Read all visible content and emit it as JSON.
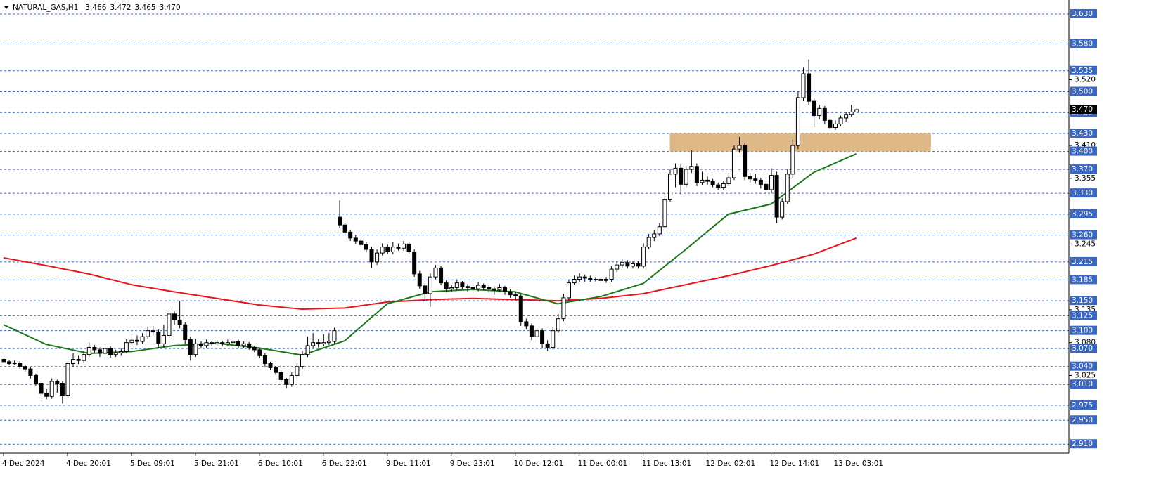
{
  "chart_data": {
    "type": "candlestick",
    "title": "NATURAL_GAS,H1",
    "title_values": [
      "3.466",
      "3.472",
      "3.465",
      "3.470"
    ],
    "ylim": [
      2.895,
      3.6535
    ],
    "up_color": "#ffffff",
    "down_color": "#000000",
    "categories": [
      "4 Dec 2024",
      null,
      null,
      null,
      null,
      null,
      null,
      null,
      null,
      null,
      null,
      null,
      "4 Dec 20:01",
      null,
      null,
      null,
      null,
      null,
      null,
      null,
      null,
      null,
      null,
      null,
      "5 Dec 09:01",
      null,
      null,
      null,
      null,
      null,
      null,
      null,
      null,
      null,
      null,
      null,
      "5 Dec 21:01",
      null,
      null,
      null,
      null,
      null,
      null,
      null,
      null,
      null,
      null,
      null,
      "6 Dec 10:01",
      null,
      null,
      null,
      null,
      null,
      null,
      null,
      null,
      null,
      null,
      null,
      "6 Dec 22:01",
      null,
      null,
      null,
      null,
      null,
      null,
      null,
      null,
      null,
      null,
      null,
      "9 Dec 11:01",
      null,
      null,
      null,
      null,
      null,
      null,
      null,
      null,
      null,
      null,
      null,
      "9 Dec 23:01",
      null,
      null,
      null,
      null,
      null,
      null,
      null,
      null,
      null,
      null,
      null,
      "10 Dec 12:01",
      null,
      null,
      null,
      null,
      null,
      null,
      null,
      null,
      null,
      null,
      null,
      "11 Dec 00:01",
      null,
      null,
      null,
      null,
      null,
      null,
      null,
      null,
      null,
      null,
      null,
      "11 Dec 13:01",
      null,
      null,
      null,
      null,
      null,
      null,
      null,
      null,
      null,
      null,
      null,
      "12 Dec 02:01",
      null,
      null,
      null,
      null,
      null,
      null,
      null,
      null,
      null,
      null,
      null,
      "12 Dec 14:01",
      null,
      null,
      null,
      null,
      null,
      null,
      null,
      null,
      null,
      null,
      null,
      "13 Dec 03:01",
      null,
      null,
      null,
      null
    ],
    "ohlc": [
      [
        3.052,
        3.055,
        3.044,
        3.048
      ],
      [
        3.048,
        3.051,
        3.042,
        3.045
      ],
      [
        3.045,
        3.05,
        3.042,
        3.046
      ],
      [
        3.046,
        3.049,
        3.036,
        3.04
      ],
      [
        3.04,
        3.043,
        3.032,
        3.036
      ],
      [
        3.036,
        3.039,
        3.02,
        3.025
      ],
      [
        3.025,
        3.028,
        3.008,
        3.012
      ],
      [
        3.012,
        3.016,
        2.978,
        2.995
      ],
      [
        2.995,
        3.003,
        2.985,
        2.99
      ],
      [
        2.99,
        3.02,
        2.986,
        3.015
      ],
      [
        3.015,
        3.018,
        2.996,
        3.012
      ],
      [
        3.012,
        3.015,
        2.978,
        2.992
      ],
      [
        2.992,
        3.05,
        2.988,
        3.045
      ],
      [
        3.045,
        3.062,
        3.04,
        3.052
      ],
      [
        3.052,
        3.058,
        3.044,
        3.05
      ],
      [
        3.05,
        3.066,
        3.046,
        3.06
      ],
      [
        3.06,
        3.08,
        3.056,
        3.072
      ],
      [
        3.072,
        3.076,
        3.062,
        3.068
      ],
      [
        3.068,
        3.072,
        3.056,
        3.062
      ],
      [
        3.062,
        3.078,
        3.058,
        3.07
      ],
      [
        3.07,
        3.074,
        3.055,
        3.06
      ],
      [
        3.06,
        3.068,
        3.056,
        3.063
      ],
      [
        3.063,
        3.07,
        3.058,
        3.065
      ],
      [
        3.065,
        3.086,
        3.062,
        3.08
      ],
      [
        3.08,
        3.09,
        3.076,
        3.084
      ],
      [
        3.084,
        3.092,
        3.076,
        3.082
      ],
      [
        3.082,
        3.096,
        3.078,
        3.09
      ],
      [
        3.09,
        3.106,
        3.086,
        3.1
      ],
      [
        3.1,
        3.108,
        3.092,
        3.098
      ],
      [
        3.098,
        3.102,
        3.07,
        3.078
      ],
      [
        3.078,
        3.11,
        3.072,
        3.092
      ],
      [
        3.092,
        3.138,
        3.088,
        3.128
      ],
      [
        3.128,
        3.132,
        3.11,
        3.118
      ],
      [
        3.118,
        3.15,
        3.104,
        3.11
      ],
      [
        3.11,
        3.114,
        3.078,
        3.085
      ],
      [
        3.085,
        3.09,
        3.05,
        3.06
      ],
      [
        3.06,
        3.086,
        3.056,
        3.078
      ],
      [
        3.078,
        3.082,
        3.07,
        3.075
      ],
      [
        3.075,
        3.085,
        3.071,
        3.08
      ],
      [
        3.08,
        3.083,
        3.074,
        3.078
      ],
      [
        3.078,
        3.084,
        3.074,
        3.08
      ],
      [
        3.08,
        3.083,
        3.074,
        3.078
      ],
      [
        3.078,
        3.085,
        3.075,
        3.08
      ],
      [
        3.08,
        3.087,
        3.077,
        3.082
      ],
      [
        3.082,
        3.085,
        3.071,
        3.075
      ],
      [
        3.075,
        3.082,
        3.071,
        3.078
      ],
      [
        3.078,
        3.081,
        3.068,
        3.072
      ],
      [
        3.072,
        3.075,
        3.064,
        3.068
      ],
      [
        3.068,
        3.071,
        3.054,
        3.058
      ],
      [
        3.058,
        3.062,
        3.04,
        3.045
      ],
      [
        3.045,
        3.048,
        3.034,
        3.038
      ],
      [
        3.038,
        3.041,
        3.026,
        3.03
      ],
      [
        3.03,
        3.033,
        3.014,
        3.018
      ],
      [
        3.018,
        3.021,
        3.004,
        3.01
      ],
      [
        3.01,
        3.03,
        3.006,
        3.025
      ],
      [
        3.025,
        3.046,
        3.02,
        3.04
      ],
      [
        3.04,
        3.066,
        3.036,
        3.06
      ],
      [
        3.06,
        3.09,
        3.056,
        3.075
      ],
      [
        3.075,
        3.096,
        3.07,
        3.08
      ],
      [
        3.08,
        3.086,
        3.072,
        3.078
      ],
      [
        3.078,
        3.094,
        3.074,
        3.08
      ],
      [
        3.08,
        3.096,
        3.076,
        3.082
      ],
      [
        3.082,
        3.105,
        3.078,
        3.1
      ],
      [
        3.29,
        3.318,
        3.272,
        3.277
      ],
      [
        3.277,
        3.28,
        3.26,
        3.265
      ],
      [
        3.265,
        3.268,
        3.25,
        3.255
      ],
      [
        3.255,
        3.26,
        3.245,
        3.25
      ],
      [
        3.25,
        3.254,
        3.24,
        3.244
      ],
      [
        3.244,
        3.248,
        3.232,
        3.236
      ],
      [
        3.236,
        3.24,
        3.205,
        3.215
      ],
      [
        3.215,
        3.236,
        3.21,
        3.23
      ],
      [
        3.23,
        3.246,
        3.226,
        3.24
      ],
      [
        3.24,
        3.244,
        3.228,
        3.232
      ],
      [
        3.232,
        3.248,
        3.228,
        3.24
      ],
      [
        3.24,
        3.246,
        3.234,
        3.238
      ],
      [
        3.238,
        3.25,
        3.234,
        3.245
      ],
      [
        3.245,
        3.248,
        3.228,
        3.232
      ],
      [
        3.232,
        3.236,
        3.19,
        3.195
      ],
      [
        3.195,
        3.2,
        3.17,
        3.175
      ],
      [
        3.175,
        3.18,
        3.15,
        3.162
      ],
      [
        3.162,
        3.196,
        3.14,
        3.19
      ],
      [
        3.19,
        3.21,
        3.186,
        3.205
      ],
      [
        3.205,
        3.208,
        3.176,
        3.18
      ],
      [
        3.18,
        3.184,
        3.164,
        3.17
      ],
      [
        3.17,
        3.176,
        3.166,
        3.172
      ],
      [
        3.172,
        3.186,
        3.168,
        3.18
      ],
      [
        3.18,
        3.183,
        3.17,
        3.174
      ],
      [
        3.174,
        3.178,
        3.166,
        3.172
      ],
      [
        3.172,
        3.176,
        3.164,
        3.17
      ],
      [
        3.17,
        3.182,
        3.166,
        3.176
      ],
      [
        3.176,
        3.179,
        3.168,
        3.172
      ],
      [
        3.172,
        3.176,
        3.164,
        3.17
      ],
      [
        3.17,
        3.174,
        3.16,
        3.168
      ],
      [
        3.168,
        3.178,
        3.164,
        3.172
      ],
      [
        3.172,
        3.175,
        3.16,
        3.165
      ],
      [
        3.165,
        3.169,
        3.155,
        3.16
      ],
      [
        3.16,
        3.164,
        3.152,
        3.158
      ],
      [
        3.158,
        3.162,
        3.108,
        3.115
      ],
      [
        3.115,
        3.12,
        3.102,
        3.108
      ],
      [
        3.108,
        3.112,
        3.084,
        3.09
      ],
      [
        3.09,
        3.106,
        3.08,
        3.1
      ],
      [
        3.1,
        3.104,
        3.07,
        3.078
      ],
      [
        3.078,
        3.084,
        3.066,
        3.072
      ],
      [
        3.072,
        3.106,
        3.068,
        3.1
      ],
      [
        3.1,
        3.128,
        3.096,
        3.12
      ],
      [
        3.12,
        3.162,
        3.116,
        3.155
      ],
      [
        3.155,
        3.186,
        3.15,
        3.18
      ],
      [
        3.18,
        3.192,
        3.176,
        3.186
      ],
      [
        3.186,
        3.196,
        3.182,
        3.19
      ],
      [
        3.19,
        3.194,
        3.182,
        3.188
      ],
      [
        3.188,
        3.192,
        3.182,
        3.186
      ],
      [
        3.186,
        3.19,
        3.182,
        3.186
      ],
      [
        3.186,
        3.19,
        3.18,
        3.184
      ],
      [
        3.184,
        3.19,
        3.18,
        3.186
      ],
      [
        3.186,
        3.208,
        3.182,
        3.203
      ],
      [
        3.203,
        3.216,
        3.198,
        3.21
      ],
      [
        3.21,
        3.22,
        3.205,
        3.214
      ],
      [
        3.214,
        3.218,
        3.204,
        3.208
      ],
      [
        3.208,
        3.216,
        3.204,
        3.212
      ],
      [
        3.212,
        3.216,
        3.204,
        3.208
      ],
      [
        3.208,
        3.246,
        3.204,
        3.24
      ],
      [
        3.24,
        3.262,
        3.236,
        3.256
      ],
      [
        3.256,
        3.268,
        3.25,
        3.262
      ],
      [
        3.262,
        3.28,
        3.258,
        3.274
      ],
      [
        3.274,
        3.33,
        3.27,
        3.32
      ],
      [
        3.32,
        3.37,
        3.316,
        3.362
      ],
      [
        3.362,
        3.38,
        3.34,
        3.372
      ],
      [
        3.372,
        3.378,
        3.328,
        3.345
      ],
      [
        3.345,
        3.376,
        3.34,
        3.37
      ],
      [
        3.37,
        3.402,
        3.364,
        3.375
      ],
      [
        3.375,
        3.38,
        3.342,
        3.348
      ],
      [
        3.348,
        3.366,
        3.344,
        3.352
      ],
      [
        3.352,
        3.358,
        3.344,
        3.35
      ],
      [
        3.35,
        3.354,
        3.34,
        3.344
      ],
      [
        3.344,
        3.348,
        3.336,
        3.34
      ],
      [
        3.34,
        3.35,
        3.336,
        3.346
      ],
      [
        3.346,
        3.364,
        3.342,
        3.356
      ],
      [
        3.356,
        3.41,
        3.352,
        3.404
      ],
      [
        3.404,
        3.424,
        3.398,
        3.41
      ],
      [
        3.41,
        3.414,
        3.352,
        3.358
      ],
      [
        3.358,
        3.364,
        3.348,
        3.354
      ],
      [
        3.354,
        3.362,
        3.346,
        3.352
      ],
      [
        3.352,
        3.356,
        3.338,
        3.345
      ],
      [
        3.345,
        3.35,
        3.326,
        3.336
      ],
      [
        3.336,
        3.372,
        3.33,
        3.36
      ],
      [
        3.36,
        3.366,
        3.28,
        3.29
      ],
      [
        3.29,
        3.322,
        3.286,
        3.316
      ],
      [
        3.316,
        3.37,
        3.312,
        3.362
      ],
      [
        3.362,
        3.42,
        3.356,
        3.41
      ],
      [
        3.41,
        3.5,
        3.404,
        3.49
      ],
      [
        3.49,
        3.54,
        3.484,
        3.53
      ],
      [
        3.53,
        3.554,
        3.478,
        3.484
      ],
      [
        3.484,
        3.49,
        3.44,
        3.46
      ],
      [
        3.46,
        3.478,
        3.454,
        3.472
      ],
      [
        3.472,
        3.476,
        3.446,
        3.452
      ],
      [
        3.452,
        3.456,
        3.434,
        3.44
      ],
      [
        3.44,
        3.452,
        3.436,
        3.446
      ],
      [
        3.446,
        3.46,
        3.442,
        3.456
      ],
      [
        3.456,
        3.466,
        3.45,
        3.462
      ],
      [
        3.462,
        3.478,
        3.458,
        3.466
      ],
      [
        3.466,
        3.472,
        3.465,
        3.47
      ]
    ],
    "series": [
      {
        "color": "#e8141a",
        "x": [
          0,
          8,
          16,
          24,
          32,
          40,
          48,
          56,
          64,
          72,
          80,
          88,
          96,
          104,
          112,
          120,
          128,
          136,
          144,
          152,
          160
        ],
        "values": [
          3.222,
          3.209,
          3.195,
          3.177,
          3.165,
          3.154,
          3.143,
          3.136,
          3.138,
          3.148,
          3.152,
          3.154,
          3.152,
          3.15,
          3.154,
          3.162,
          3.177,
          3.192,
          3.209,
          3.228,
          3.255
        ]
      },
      {
        "color": "#1a7a1a",
        "x": [
          0,
          8,
          16,
          24,
          32,
          40,
          48,
          56,
          64,
          72,
          80,
          88,
          96,
          104,
          112,
          120,
          128,
          136,
          144,
          152,
          160
        ],
        "values": [
          3.11,
          3.077,
          3.062,
          3.065,
          3.075,
          3.079,
          3.071,
          3.059,
          3.083,
          3.145,
          3.165,
          3.169,
          3.165,
          3.145,
          3.157,
          3.179,
          3.236,
          3.295,
          3.312,
          3.365,
          3.396
        ]
      }
    ],
    "zone": {
      "x": [
        125,
        174
      ],
      "ylim": [
        3.4,
        3.43
      ],
      "color": "#deb887"
    },
    "levels": [
      {
        "value": 3.63,
        "label": "3.630"
      },
      {
        "value": 3.58,
        "label": "3.580"
      },
      {
        "value": 3.535,
        "label": "3.535"
      },
      {
        "value": 3.5,
        "label": "3.500"
      },
      {
        "value": 3.465,
        "label": "3.465"
      },
      {
        "value": 3.43,
        "label": "3.430"
      },
      {
        "value": 3.4,
        "label": "3.400"
      },
      {
        "value": 3.37,
        "label": "3.370"
      },
      {
        "value": 3.33,
        "label": "3.330"
      },
      {
        "value": 3.295,
        "label": "3.295"
      },
      {
        "value": 3.26,
        "label": "3.260"
      },
      {
        "value": 3.215,
        "label": "3.215"
      },
      {
        "value": 3.185,
        "label": "3.185"
      },
      {
        "value": 3.15,
        "label": "3.150"
      },
      {
        "value": 3.125,
        "label": "3.125"
      },
      {
        "value": 3.1,
        "label": "3.100"
      },
      {
        "value": 3.07,
        "label": "3.070"
      },
      {
        "value": 3.04,
        "label": "3.040"
      },
      {
        "value": 3.01,
        "label": "3.010"
      },
      {
        "value": 2.975,
        "label": "2.975"
      },
      {
        "value": 2.95,
        "label": "2.950"
      },
      {
        "value": 2.91,
        "label": "2.910"
      }
    ],
    "level_color": "#3a66c4",
    "yticks": [
      {
        "value": 3.52,
        "label": "3.520"
      },
      {
        "value": 3.41,
        "label": "3.410"
      },
      3.355,
      3.245,
      3.135,
      {
        "value": 3.08,
        "label": "3.080"
      },
      3.025
    ],
    "current_price": {
      "value": 3.47,
      "label": "3.470"
    }
  }
}
